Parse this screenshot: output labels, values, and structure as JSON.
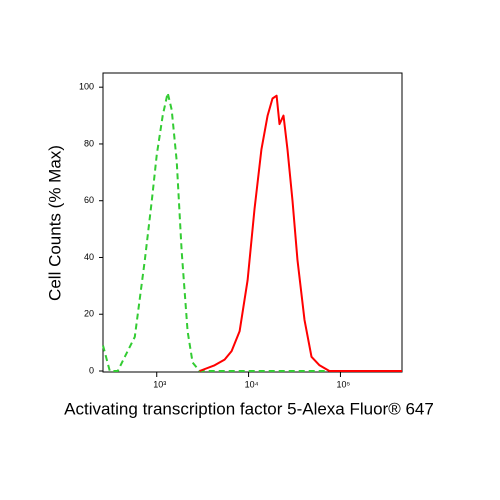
{
  "chart_data": {
    "type": "line",
    "xlabel": "Activating transcription factor 5-Alexa Fluor® 647",
    "ylabel": "Cell Counts (% Max)",
    "xscale": "log",
    "xlim": [
      260,
      468000
    ],
    "ylim": [
      0,
      105
    ],
    "xticks": [
      {
        "value": 1000,
        "label": "10³"
      },
      {
        "value": 10000,
        "label": "10⁴"
      },
      {
        "value": 100000,
        "label": "10⁵"
      }
    ],
    "yticks": [
      0,
      20,
      40,
      60,
      80,
      100
    ],
    "series": [
      {
        "color": "#33cc33",
        "dashed": true,
        "x": [
          260,
          308,
          377,
          449,
          577,
          741,
          883,
          1000,
          1160,
          1318,
          1456,
          1650,
          1870,
          2170,
          2460,
          2930,
          468000
        ],
        "values": [
          9,
          0,
          0,
          5,
          12,
          39,
          60,
          76,
          90,
          98,
          92,
          74,
          42,
          14,
          3,
          0,
          0
        ]
      },
      {
        "color": "#ff0000",
        "dashed": false,
        "x": [
          2930,
          4270,
          5480,
          6530,
          7980,
          9750,
          11600,
          13800,
          16100,
          18200,
          20200,
          21700,
          24000,
          26500,
          30100,
          34100,
          40600,
          48400,
          59200,
          75900,
          468000
        ],
        "values": [
          0,
          2,
          4,
          7,
          14,
          32,
          57,
          78,
          90,
          96,
          97,
          87,
          90,
          78,
          60,
          39,
          18,
          5,
          2,
          0,
          0
        ]
      }
    ]
  }
}
